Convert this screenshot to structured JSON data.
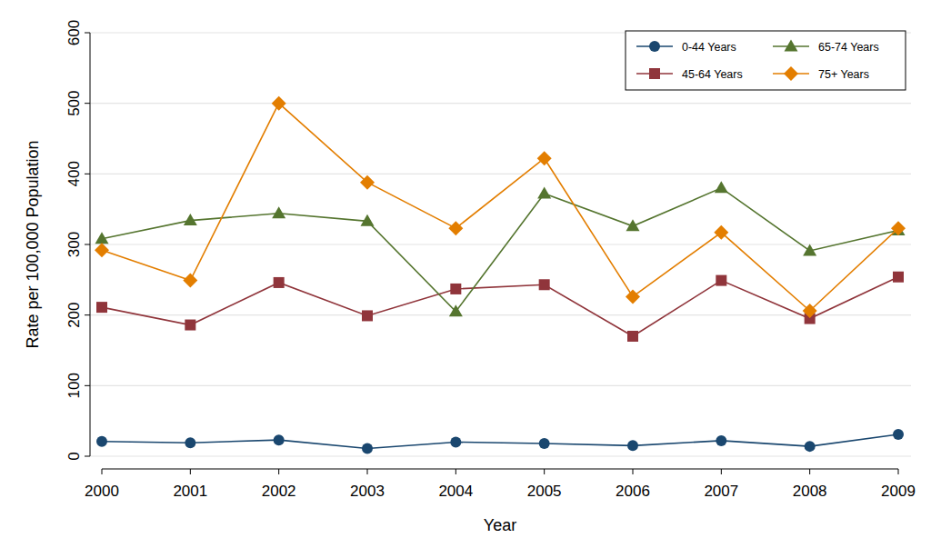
{
  "chart_data": {
    "type": "line",
    "x_label": "Year",
    "y_label": "Rate per 100,000 Population",
    "x": [
      2000,
      2001,
      2002,
      2003,
      2004,
      2005,
      2006,
      2007,
      2008,
      2009
    ],
    "xlim": [
      2000,
      2009
    ],
    "xticks": [
      2000,
      2001,
      2002,
      2003,
      2004,
      2005,
      2006,
      2007,
      2008,
      2009
    ],
    "ylim": [
      0,
      600
    ],
    "yticks": [
      0,
      100,
      200,
      300,
      400,
      500,
      600
    ],
    "grid": true,
    "legend": "top-right",
    "series": [
      {
        "name": "0-44 Years",
        "color": "#1a476f",
        "marker": "circle",
        "values": [
          21,
          19,
          23,
          11,
          20,
          18,
          15,
          22,
          14,
          31
        ]
      },
      {
        "name": "45-64 Years",
        "color": "#90353b",
        "marker": "square",
        "values": [
          211,
          186,
          246,
          199,
          237,
          243,
          170,
          249,
          195,
          254
        ]
      },
      {
        "name": "65-74 Years",
        "color": "#55752f",
        "marker": "triangle",
        "values": [
          308,
          334,
          344,
          333,
          205,
          372,
          326,
          380,
          291,
          320
        ]
      },
      {
        "name": "75+ Years",
        "color": "#e37e00",
        "marker": "diamond",
        "values": [
          292,
          249,
          500,
          388,
          323,
          422,
          226,
          317,
          206,
          323
        ]
      }
    ]
  }
}
